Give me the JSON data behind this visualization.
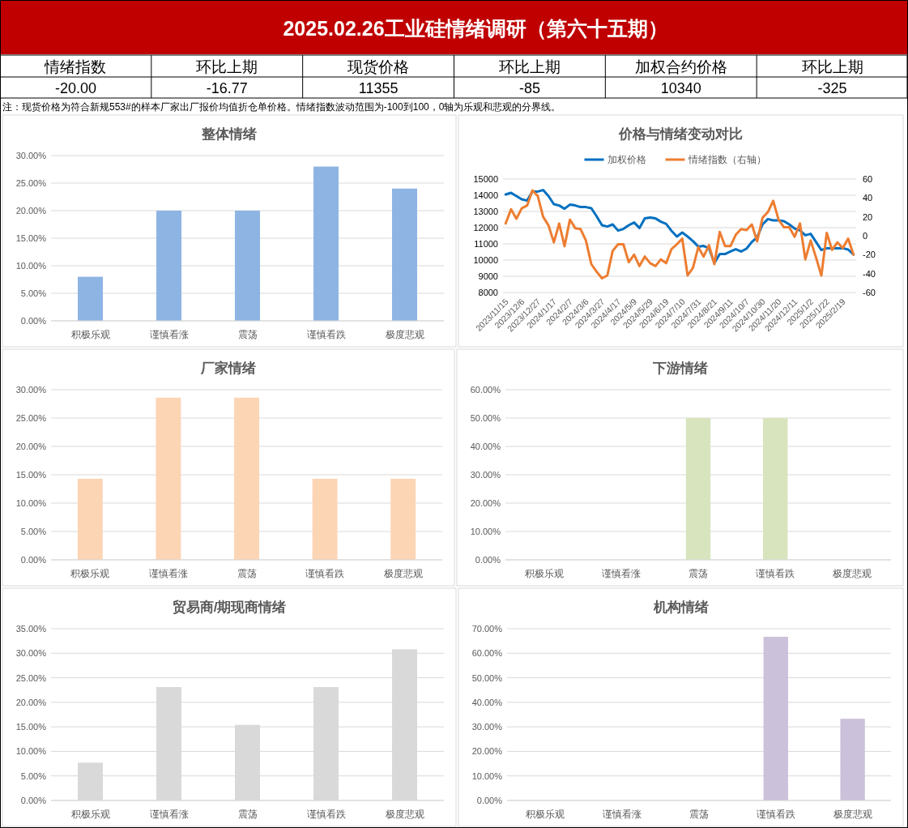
{
  "chart_data": [
    {
      "type": "other",
      "title": "2025.02.26工业硅情绪调研（第六十五期）",
      "categories": [
        "情绪指数",
        "环比上期",
        "现货价格",
        "环比上期",
        "加权合约价格",
        "环比上期"
      ],
      "value_labels": [
        "-20.00",
        "-16.77",
        "11355",
        "-85",
        "10340",
        "-325"
      ],
      "annotations": [
        "注：现货价格为符合新规553#的样本厂家出厂报价均值折仓单价格。情绪指数波动范围为-100到100，0轴为乐观和悲观的分界线。"
      ]
    },
    {
      "type": "bar",
      "title": "整体情绪",
      "categories": [
        "积极乐观",
        "谨慎看涨",
        "震荡",
        "谨慎看跌",
        "极度悲观"
      ],
      "values": [
        8,
        20,
        20,
        28,
        24
      ],
      "color": "#8eb4e3",
      "ylim": [
        0,
        30
      ],
      "yticks": [
        {
          "value": 0,
          "label": "0.00%"
        },
        {
          "value": 5,
          "label": "5.00%"
        },
        {
          "value": 10,
          "label": "10.00%"
        },
        {
          "value": 15,
          "label": "15.00%"
        },
        {
          "value": 20,
          "label": "20.00%"
        },
        {
          "value": 25,
          "label": "25.00%"
        },
        {
          "value": 30,
          "label": "30.00%"
        }
      ],
      "grid": "y"
    },
    {
      "type": "line",
      "title": "价格与情绪变动对比",
      "categories": [
        "2023/11/15",
        null,
        null,
        "2023/12/6",
        null,
        null,
        "2023/12/27",
        null,
        null,
        "2024/1/17",
        null,
        null,
        "2024/2/7",
        null,
        null,
        "2024/3/6",
        null,
        null,
        "2024/3/27",
        null,
        null,
        "2024/4/17",
        null,
        null,
        "2024/5/9",
        null,
        null,
        "2024/5/29",
        null,
        null,
        "2024/6/19",
        null,
        null,
        "2024/7/10",
        null,
        null,
        "2024/7/31",
        null,
        null,
        "2024/8/21",
        null,
        null,
        "2024/9/11",
        null,
        null,
        "2024/10/7",
        null,
        null,
        "2024/10/30",
        null,
        null,
        "2024/11/20",
        null,
        null,
        "2024/12/11",
        null,
        null,
        "2025/1/2",
        null,
        null,
        "2025/1/22",
        null,
        null,
        "2025/2/19",
        null,
        null
      ],
      "series": [
        {
          "name": "加权价格",
          "color": "#0070c0",
          "values": [
            14050,
            14150,
            13950,
            13750,
            13670,
            14230,
            14230,
            14320,
            13950,
            13450,
            13370,
            13170,
            13420,
            13370,
            13270,
            13270,
            13200,
            12700,
            12150,
            12070,
            12200,
            11820,
            11920,
            12150,
            12320,
            11980,
            12570,
            12630,
            12570,
            12370,
            12230,
            11800,
            11450,
            11700,
            11450,
            11170,
            10830,
            10870,
            10730,
            9830,
            10370,
            10370,
            10530,
            10670,
            10530,
            10700,
            11120,
            11400,
            12200,
            12530,
            12450,
            12450,
            12400,
            12200,
            11950,
            11830,
            11530,
            11620,
            11120,
            10620,
            10730,
            10730,
            10730,
            10730,
            10650,
            10340
          ]
        },
        {
          "name": "情绪指数（右轴）",
          "color": "#ed7d31",
          "axis": "y2",
          "values": [
            13,
            28,
            18,
            29,
            32,
            48,
            42,
            20,
            11,
            -7,
            13,
            -11,
            17,
            8,
            7,
            -5,
            -30,
            -38,
            -45,
            -42,
            -16,
            -9,
            -9,
            -28,
            -20,
            -32,
            -22,
            -29,
            -32,
            -25,
            -29,
            -14,
            -9,
            -3,
            -42,
            -34,
            -12,
            -22,
            -10,
            -30,
            4,
            -11,
            -11,
            1,
            7,
            6,
            12,
            -6,
            19,
            25,
            37,
            17,
            9,
            9,
            -1,
            13,
            -25,
            -5,
            -23,
            -42,
            3,
            -15,
            -7,
            -13,
            -3,
            -20
          ]
        }
      ],
      "ylim": [
        8000,
        15000
      ],
      "yticks": [
        8000,
        9000,
        10000,
        11000,
        12000,
        13000,
        14000,
        15000
      ],
      "y2lim": [
        -60,
        60
      ],
      "y2ticks": [
        -60,
        -40,
        -20,
        0,
        20,
        40,
        60
      ],
      "grid": "y",
      "legend": "top"
    },
    {
      "type": "bar",
      "title": "厂家情绪",
      "categories": [
        "积极乐观",
        "谨慎看涨",
        "震荡",
        "谨慎看跌",
        "极度悲观"
      ],
      "values": [
        14.3,
        28.6,
        28.6,
        14.3,
        14.3
      ],
      "color": "#fcd5b5",
      "ylim": [
        0,
        30
      ],
      "yticks": [
        {
          "value": 0,
          "label": "0.00%"
        },
        {
          "value": 5,
          "label": "5.00%"
        },
        {
          "value": 10,
          "label": "10.00%"
        },
        {
          "value": 15,
          "label": "15.00%"
        },
        {
          "value": 20,
          "label": "20.00%"
        },
        {
          "value": 25,
          "label": "25.00%"
        },
        {
          "value": 30,
          "label": "30.00%"
        }
      ],
      "grid": "y"
    },
    {
      "type": "bar",
      "title": "下游情绪",
      "categories": [
        "积极乐观",
        "谨慎看涨",
        "震荡",
        "谨慎看跌",
        "极度悲观"
      ],
      "values": [
        0,
        0,
        50,
        50,
        0
      ],
      "color": "#d7e4bd",
      "ylim": [
        0,
        60
      ],
      "yticks": [
        {
          "value": 0,
          "label": "0.00%"
        },
        {
          "value": 10,
          "label": "10.00%"
        },
        {
          "value": 20,
          "label": "20.00%"
        },
        {
          "value": 30,
          "label": "30.00%"
        },
        {
          "value": 40,
          "label": "40.00%"
        },
        {
          "value": 50,
          "label": "50.00%"
        },
        {
          "value": 60,
          "label": "60.00%"
        }
      ],
      "grid": "y"
    },
    {
      "type": "bar",
      "title": "贸易商/期现商情绪",
      "categories": [
        "积极乐观",
        "谨慎看涨",
        "震荡",
        "谨慎看跌",
        "极度悲观"
      ],
      "values": [
        7.7,
        23.1,
        15.4,
        23.1,
        30.8
      ],
      "color": "#d9d9d9",
      "ylim": [
        0,
        35
      ],
      "yticks": [
        {
          "value": 0,
          "label": "0.00%"
        },
        {
          "value": 5,
          "label": "5.00%"
        },
        {
          "value": 10,
          "label": "10.00%"
        },
        {
          "value": 15,
          "label": "15.00%"
        },
        {
          "value": 20,
          "label": "20.00%"
        },
        {
          "value": 25,
          "label": "25.00%"
        },
        {
          "value": 30,
          "label": "30.00%"
        },
        {
          "value": 35,
          "label": "35.00%"
        }
      ],
      "grid": "y"
    },
    {
      "type": "bar",
      "title": "机构情绪",
      "categories": [
        "积极乐观",
        "谨慎看涨",
        "震荡",
        "谨慎看跌",
        "极度悲观"
      ],
      "values": [
        0,
        0,
        0,
        66.7,
        33.3
      ],
      "color": "#ccc1da",
      "ylim": [
        0,
        70
      ],
      "yticks": [
        {
          "value": 0,
          "label": "0.00%"
        },
        {
          "value": 10,
          "label": "10.00%"
        },
        {
          "value": 20,
          "label": "20.00%"
        },
        {
          "value": 30,
          "label": "30.00%"
        },
        {
          "value": 40,
          "label": "40.00%"
        },
        {
          "value": 50,
          "label": "50.00%"
        },
        {
          "value": 60,
          "label": "60.00%"
        },
        {
          "value": 70,
          "label": "70.00%"
        }
      ],
      "grid": "y"
    }
  ]
}
